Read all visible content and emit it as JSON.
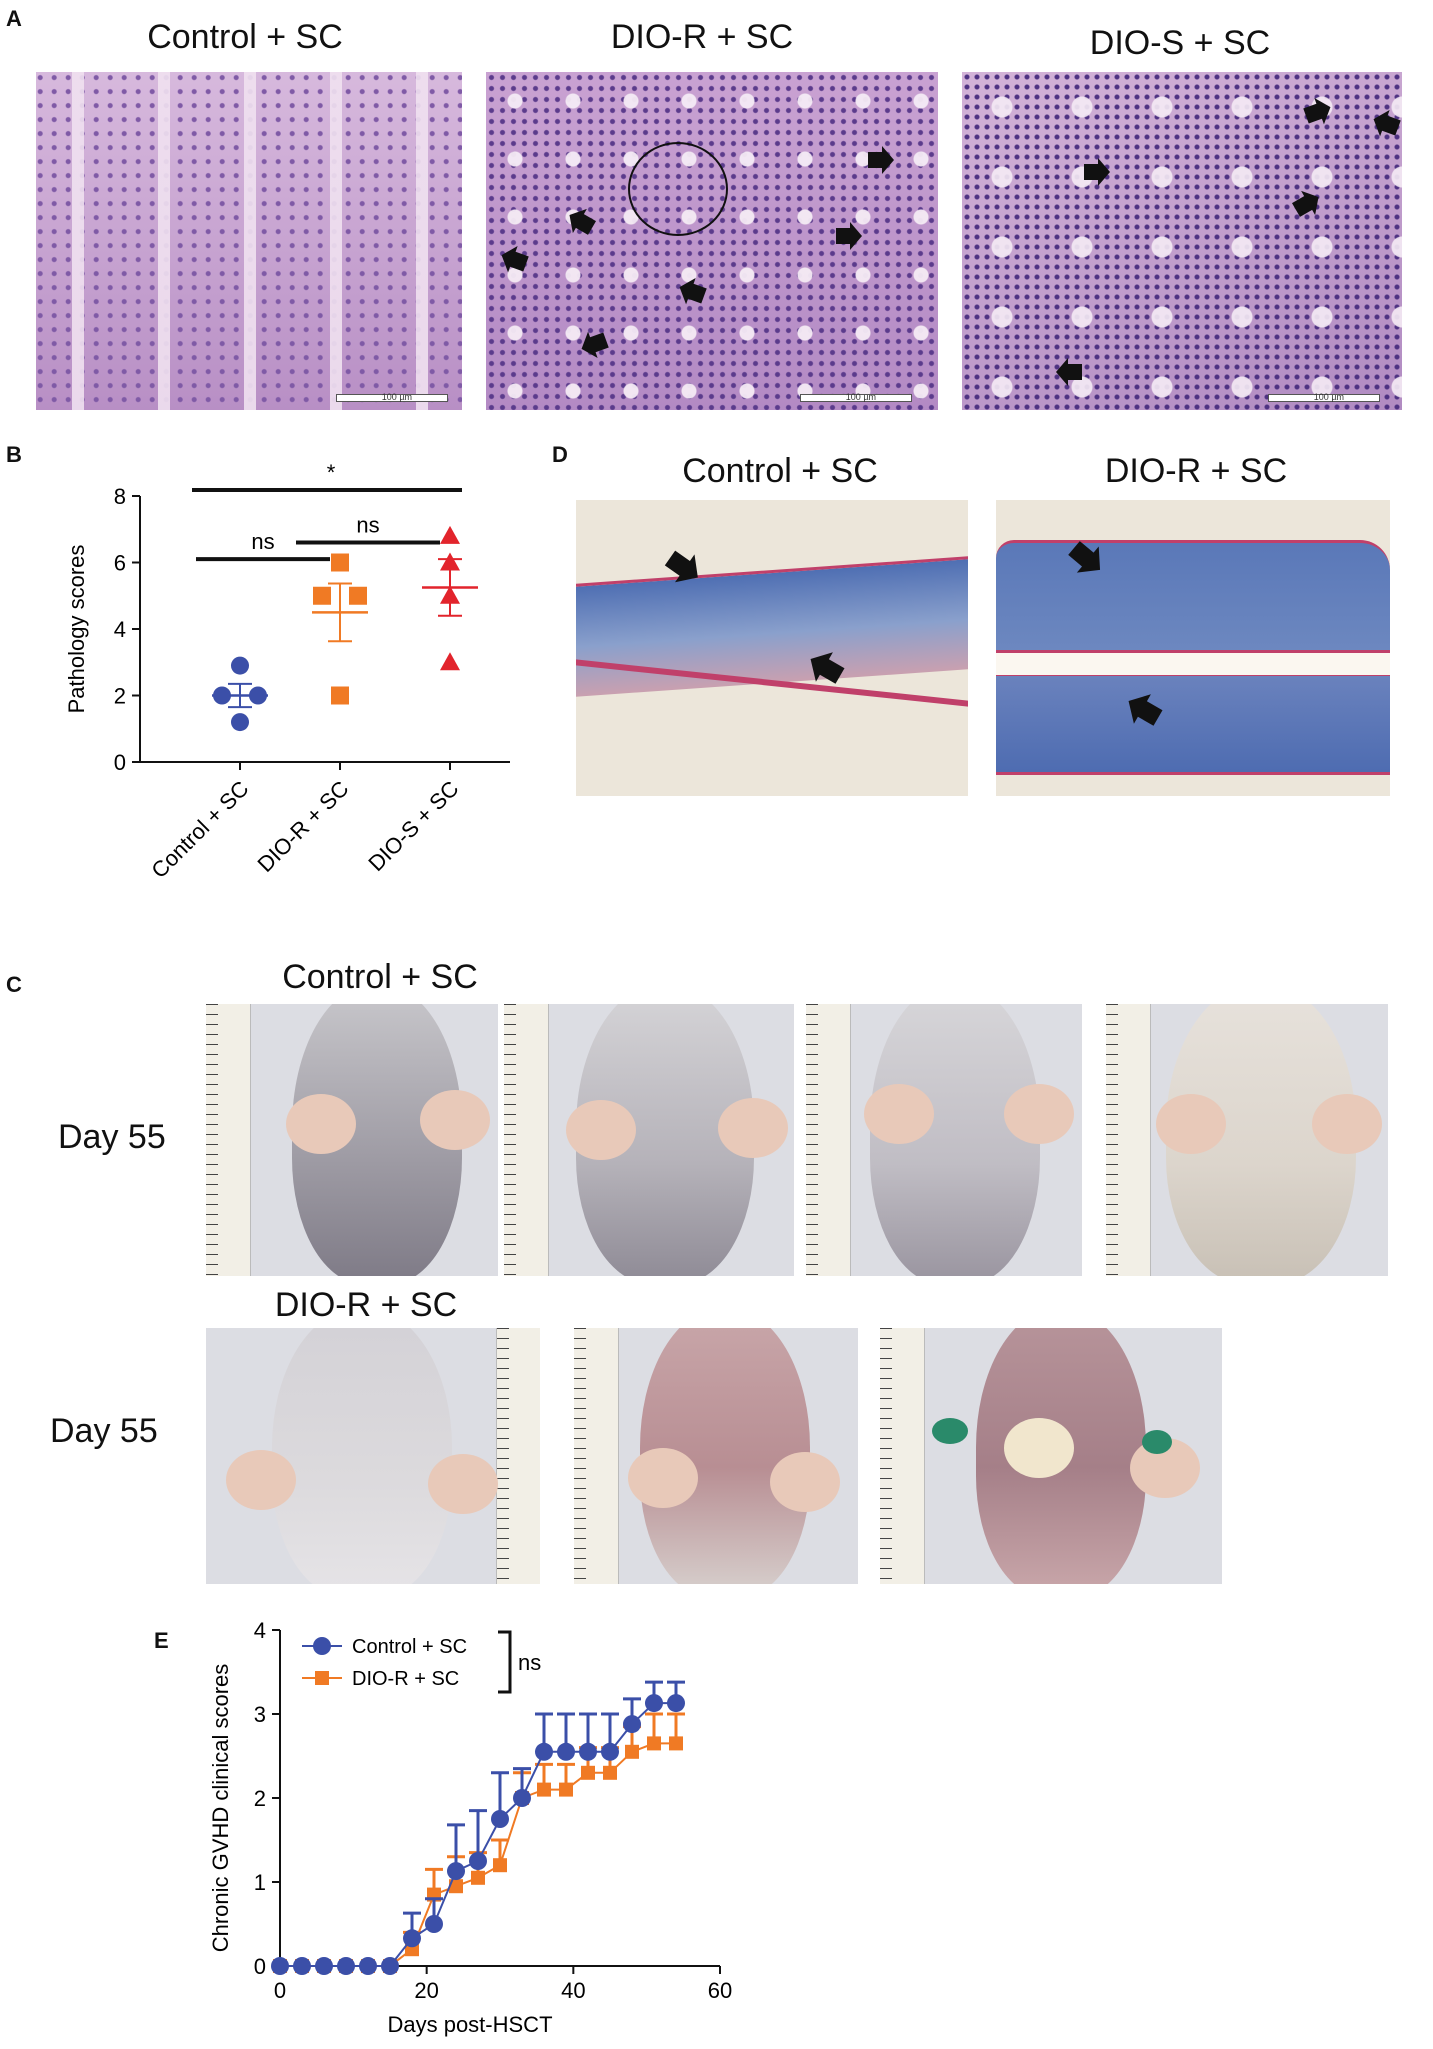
{
  "panel_labels": {
    "a": "A",
    "b": "B",
    "c": "C",
    "d": "D",
    "e": "E"
  },
  "panel_a": {
    "titles": [
      "Control + SC",
      "DIO-R + SC",
      "DIO-S + SC"
    ],
    "scale_text": "100 µm",
    "colors": {
      "tissue": "#c9a3d0",
      "nuclei": "#5a3a8a"
    }
  },
  "panel_d": {
    "titles": [
      "Control + SC",
      "DIO-R + SC"
    ],
    "colors": {
      "blue": "#5a78b8",
      "red": "#c0406a",
      "background": "#ece6da"
    }
  },
  "panel_c": {
    "title_top": "Control + SC",
    "title_bottom": "DIO-R + SC",
    "day_label_top": "Day 55",
    "day_label_bottom": "Day 55"
  },
  "chart_data": [
    {
      "id": "B",
      "type": "scatter",
      "title": "",
      "ylabel": "Pathology scores",
      "xlabel": "",
      "ylim": [
        0,
        8
      ],
      "yticks": [
        0,
        2,
        4,
        6,
        8
      ],
      "categories": [
        "Control + SC",
        "DIO-R + SC",
        "DIO-S + SC"
      ],
      "groups": [
        {
          "name": "Control + SC",
          "color": "#3b4fa8",
          "marker": "circle",
          "points": [
            2.9,
            2.0,
            2.0,
            1.2
          ],
          "mean": 2.0,
          "sem": 0.35
        },
        {
          "name": "DIO-R + SC",
          "color": "#f07a24",
          "marker": "square",
          "points": [
            6.0,
            5.0,
            5.0,
            2.0
          ],
          "mean": 4.5,
          "sem": 0.87
        },
        {
          "name": "DIO-S + SC",
          "color": "#e2242c",
          "marker": "triangle",
          "points": [
            6.8,
            6.0,
            5.0,
            3.0
          ],
          "mean": 5.25,
          "sem": 0.85
        }
      ],
      "significance": [
        {
          "from": 0,
          "to": 2,
          "label": "*"
        },
        {
          "from": 0,
          "to": 1,
          "label": "ns"
        },
        {
          "from": 1,
          "to": 2,
          "label": "ns"
        }
      ]
    },
    {
      "id": "E",
      "type": "line",
      "title": "",
      "xlabel": "Days post-HSCT",
      "ylabel": "Chronic GVHD clinical scores",
      "xlim": [
        0,
        60
      ],
      "ylim": [
        0,
        4
      ],
      "xticks": [
        0,
        20,
        40,
        60
      ],
      "yticks": [
        0,
        1,
        2,
        3,
        4
      ],
      "legend_position": "top-left",
      "significance_label": "ns",
      "series": [
        {
          "name": "Control + SC",
          "color": "#3b4fa8",
          "marker": "circle",
          "x": [
            0,
            3,
            6,
            9,
            12,
            15,
            18,
            21,
            24,
            27,
            30,
            33,
            36,
            39,
            42,
            45,
            48,
            51,
            54
          ],
          "y": [
            0,
            0,
            0,
            0,
            0,
            0,
            0.33,
            0.5,
            1.13,
            1.25,
            1.75,
            2.0,
            2.55,
            2.55,
            2.55,
            2.55,
            2.88,
            3.13,
            3.13
          ],
          "err": [
            0,
            0,
            0,
            0,
            0,
            0,
            0.3,
            0.3,
            0.55,
            0.6,
            0.55,
            0.35,
            0.45,
            0.45,
            0.45,
            0.45,
            0.3,
            0.25,
            0.25
          ]
        },
        {
          "name": "DIO-R + SC",
          "color": "#f07a24",
          "marker": "square",
          "x": [
            0,
            3,
            6,
            9,
            12,
            15,
            18,
            21,
            24,
            27,
            30,
            33,
            36,
            39,
            42,
            45,
            48,
            51,
            54
          ],
          "y": [
            0,
            0,
            0,
            0,
            0,
            0,
            0.2,
            0.85,
            0.95,
            1.05,
            1.2,
            2.0,
            2.1,
            2.1,
            2.3,
            2.3,
            2.55,
            2.65,
            2.65
          ],
          "err": [
            0,
            0,
            0,
            0,
            0,
            0,
            0.2,
            0.3,
            0.35,
            0.3,
            0.3,
            0.3,
            0.3,
            0.3,
            0.3,
            0.3,
            0.3,
            0.35,
            0.35
          ]
        }
      ]
    }
  ]
}
